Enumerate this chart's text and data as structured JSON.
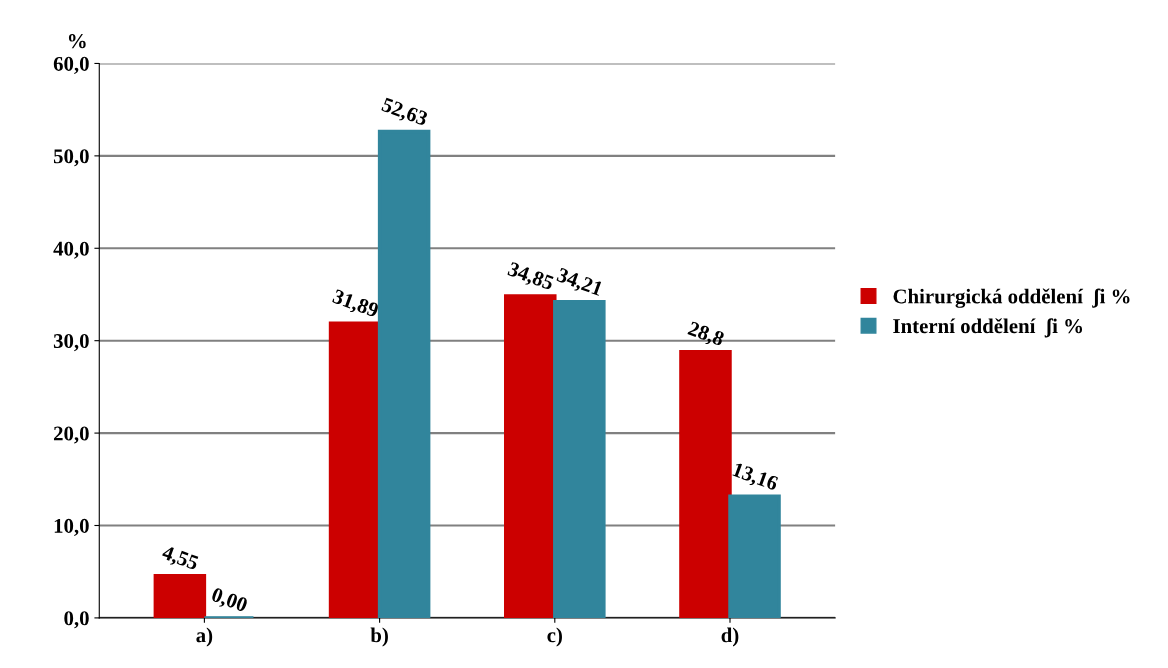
{
  "chart_data": {
    "type": "bar",
    "ylabel": "%",
    "categories": [
      "a)",
      "b)",
      "c)",
      "d)"
    ],
    "series": [
      {
        "name": "Chirurgická oddělení  ʃi %",
        "color": "#cc0000",
        "values": [
          4.55,
          31.89,
          34.85,
          28.8
        ],
        "value_labels": [
          "4,55",
          "31,89",
          "34,85",
          "28,8"
        ]
      },
      {
        "name": "Interní oddělení  ʃi %",
        "color": "#31859c",
        "values": [
          0.0,
          52.63,
          34.21,
          13.16
        ],
        "value_labels": [
          "0,00",
          "52,63",
          "34,21",
          "13,16"
        ]
      }
    ],
    "ylim": [
      0,
      60
    ],
    "yticks": [
      {
        "value": 0,
        "label": "0,0"
      },
      {
        "value": 10,
        "label": "10,0"
      },
      {
        "value": 20,
        "label": "20,0"
      },
      {
        "value": 30,
        "label": "30,0"
      },
      {
        "value": 40,
        "label": "40,0"
      },
      {
        "value": 50,
        "label": "50,0"
      },
      {
        "value": 60,
        "label": "60,0"
      }
    ],
    "grid": "y",
    "legend": "right"
  }
}
